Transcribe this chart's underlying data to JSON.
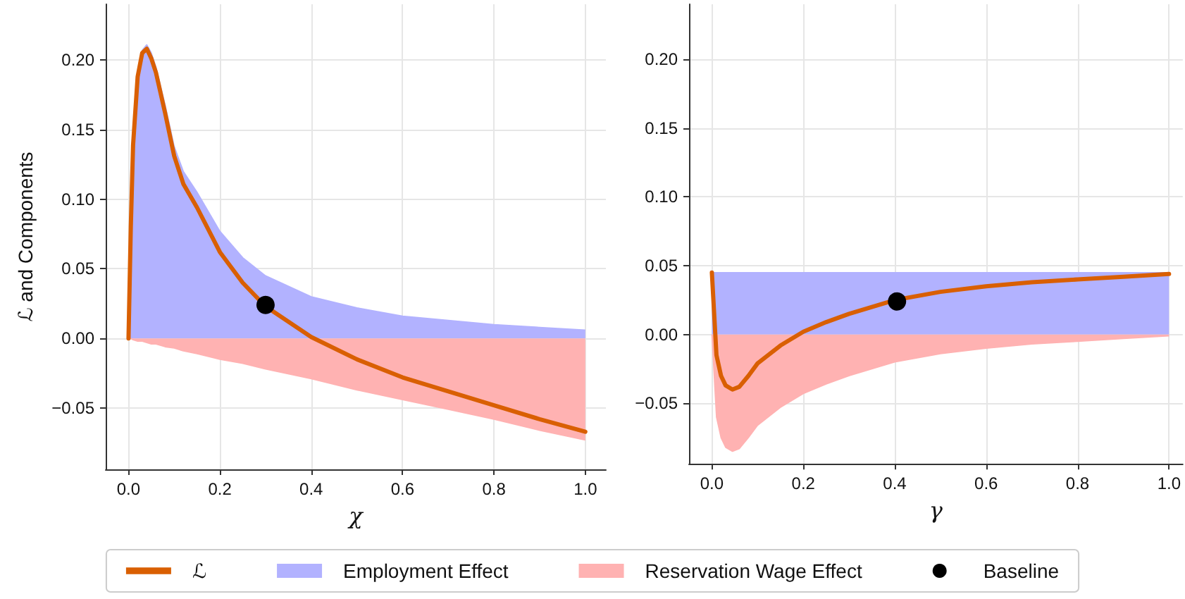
{
  "chart_data": [
    {
      "type": "line",
      "xlabel": "χ",
      "ylabel": "ℒ and Components",
      "xlim": [
        -0.05,
        1.045
      ],
      "ylim": [
        -0.094,
        0.24
      ],
      "xticks": [
        {
          "value": 0,
          "label": "0.0"
        },
        {
          "value": 0.2,
          "label": "0.2"
        },
        {
          "value": 0.4,
          "label": "0.4"
        },
        {
          "value": 0.6,
          "label": "0.6"
        },
        {
          "value": 0.8,
          "label": "0.8"
        },
        {
          "value": 1,
          "label": "1.0"
        }
      ],
      "yticks": [
        {
          "value": -0.05,
          "label": "−0.05"
        },
        {
          "value": 0,
          "label": "0.00"
        },
        {
          "value": 0.05,
          "label": "0.05"
        },
        {
          "value": 0.1,
          "label": "0.10"
        },
        {
          "value": 0.15,
          "label": "0.15"
        },
        {
          "value": 0.2,
          "label": "0.20"
        }
      ],
      "grid": true,
      "legend": "bottom",
      "series": [
        {
          "name": "ℒ",
          "color": "#d95f02",
          "marker": "none",
          "x": [
            0,
            0.005,
            0.01,
            0.02,
            0.03,
            0.04,
            0.05,
            0.06,
            0.08,
            0.1,
            0.12,
            0.15,
            0.2,
            0.25,
            0.3,
            0.4,
            0.5,
            0.6,
            0.7,
            0.8,
            0.9,
            1.0
          ],
          "values": [
            0,
            0.08,
            0.139,
            0.188,
            0.205,
            0.208,
            0.201,
            0.191,
            0.162,
            0.131,
            0.111,
            0.094,
            0.062,
            0.04,
            0.023,
            0.001,
            -0.015,
            -0.028,
            -0.038,
            -0.048,
            -0.058,
            -0.067
          ]
        },
        {
          "name": "Employment Effect",
          "type": "area",
          "color": "#b2b2ff",
          "x": [
            0,
            0.005,
            0.01,
            0.02,
            0.03,
            0.04,
            0.05,
            0.06,
            0.08,
            0.1,
            0.12,
            0.15,
            0.2,
            0.25,
            0.3,
            0.4,
            0.5,
            0.6,
            0.7,
            0.8,
            0.9,
            1.0
          ],
          "values": [
            0,
            0.08,
            0.14,
            0.19,
            0.207,
            0.211,
            0.205,
            0.195,
            0.168,
            0.138,
            0.12,
            0.105,
            0.077,
            0.058,
            0.045,
            0.03,
            0.022,
            0.016,
            0.013,
            0.01,
            0.008,
            0.006
          ]
        },
        {
          "name": "Reservation Wage Effect",
          "type": "area",
          "color": "#ffb2b2",
          "x": [
            0,
            0.005,
            0.01,
            0.02,
            0.03,
            0.04,
            0.05,
            0.06,
            0.08,
            0.1,
            0.12,
            0.15,
            0.2,
            0.25,
            0.3,
            0.4,
            0.5,
            0.6,
            0.7,
            0.8,
            0.9,
            1.0
          ],
          "values": [
            0,
            0,
            -0.001,
            -0.002,
            -0.002,
            -0.003,
            -0.004,
            -0.004,
            -0.006,
            -0.007,
            -0.009,
            -0.011,
            -0.015,
            -0.018,
            -0.022,
            -0.029,
            -0.037,
            -0.044,
            -0.051,
            -0.058,
            -0.066,
            -0.073
          ]
        },
        {
          "name": "Baseline",
          "type": "scatter",
          "color": "#000000",
          "marker": "circle",
          "x": [
            0.3
          ],
          "values": [
            0.024
          ]
        }
      ]
    },
    {
      "type": "line",
      "xlabel": "γ",
      "xlim": [
        -0.05,
        1.03
      ],
      "ylim": [
        -0.094,
        0.24
      ],
      "xticks": [
        {
          "value": 0,
          "label": "0.0"
        },
        {
          "value": 0.2,
          "label": "0.2"
        },
        {
          "value": 0.4,
          "label": "0.4"
        },
        {
          "value": 0.6,
          "label": "0.6"
        },
        {
          "value": 0.8,
          "label": "0.8"
        },
        {
          "value": 1,
          "label": "1.0"
        }
      ],
      "yticks": [
        {
          "value": -0.05,
          "label": "−0.05"
        },
        {
          "value": 0,
          "label": "0.00"
        },
        {
          "value": 0.05,
          "label": "0.05"
        },
        {
          "value": 0.1,
          "label": "0.10"
        },
        {
          "value": 0.15,
          "label": "0.15"
        },
        {
          "value": 0.2,
          "label": "0.20"
        }
      ],
      "grid": true,
      "series": [
        {
          "color": "#d95f02",
          "marker": "none",
          "x": [
            0,
            0.01,
            0.02,
            0.03,
            0.045,
            0.06,
            0.08,
            0.1,
            0.15,
            0.2,
            0.25,
            0.3,
            0.4,
            0.5,
            0.6,
            0.7,
            0.8,
            0.9,
            1.0
          ],
          "values": [
            0.045,
            -0.015,
            -0.03,
            -0.037,
            -0.04,
            -0.038,
            -0.03,
            -0.021,
            -0.008,
            0.002,
            0.009,
            0.015,
            0.025,
            0.031,
            0.035,
            0.038,
            0.04,
            0.042,
            0.044
          ]
        },
        {
          "type": "area",
          "color": "#b2b2ff",
          "x": [
            0,
            1.0
          ],
          "values": [
            0.045,
            0.045
          ]
        },
        {
          "type": "area",
          "color": "#ffb2b2",
          "x": [
            0,
            0.01,
            0.02,
            0.03,
            0.045,
            0.06,
            0.08,
            0.1,
            0.15,
            0.2,
            0.25,
            0.3,
            0.4,
            0.5,
            0.6,
            0.7,
            0.8,
            0.9,
            1.0
          ],
          "values": [
            0,
            -0.06,
            -0.075,
            -0.082,
            -0.085,
            -0.083,
            -0.075,
            -0.066,
            -0.053,
            -0.043,
            -0.036,
            -0.03,
            -0.02,
            -0.014,
            -0.01,
            -0.007,
            -0.005,
            -0.003,
            -0.001
          ]
        },
        {
          "type": "scatter",
          "color": "#000000",
          "marker": "circle",
          "x": [
            0.405
          ],
          "values": [
            0.024
          ]
        }
      ]
    }
  ]
}
